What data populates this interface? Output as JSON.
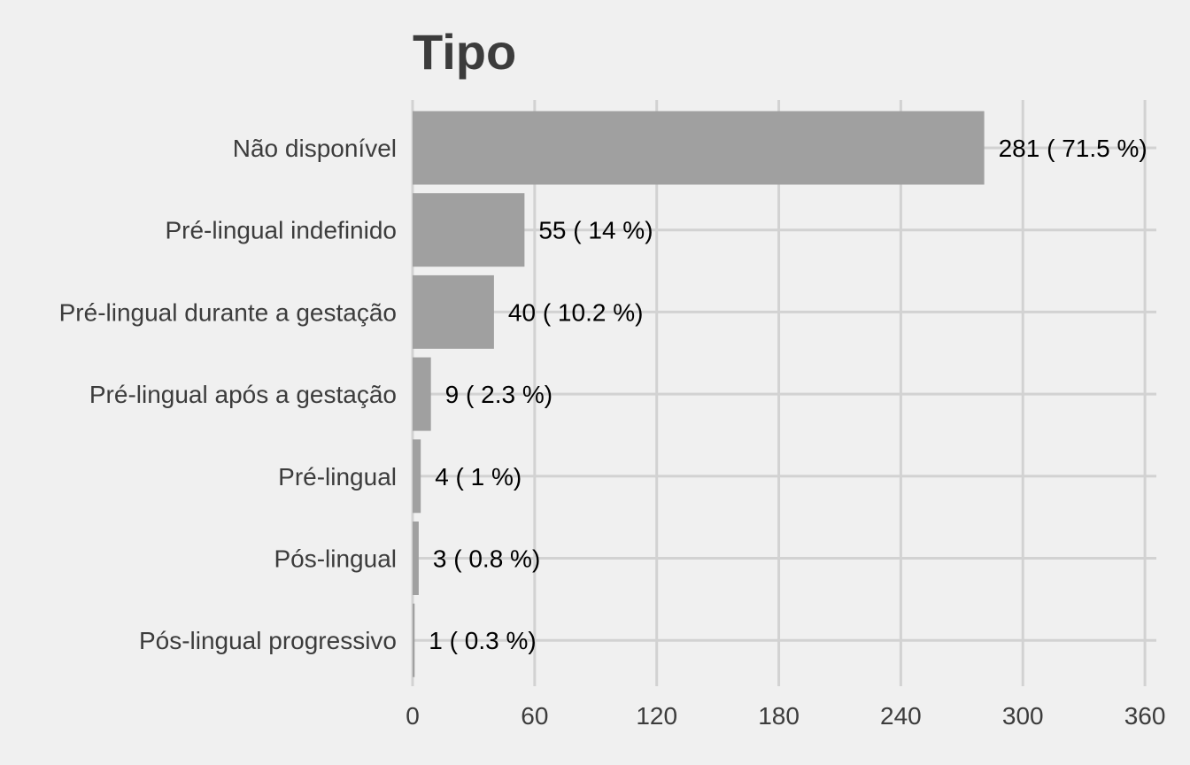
{
  "chart_data": {
    "type": "bar",
    "orientation": "horizontal",
    "title": "Tipo",
    "xlabel": "",
    "ylabel": "",
    "categories": [
      "Não disponível",
      "Pré-lingual indefinido",
      "Pré-lingual durante a gestação",
      "Pré-lingual após a gestação",
      "Pré-lingual",
      "Pós-lingual",
      "Pós-lingual progressivo"
    ],
    "values": [
      281,
      55,
      40,
      9,
      4,
      3,
      1
    ],
    "data_labels": [
      "281 ( 71.5 %)",
      "55 ( 14 %)",
      "40 ( 10.2 %)",
      "9 ( 2.3 %)",
      "4 ( 1 %)",
      "3 ( 0.8 %)",
      "1 ( 0.3 %)"
    ],
    "xlim": [
      0,
      365
    ],
    "xticks": [
      0,
      60,
      120,
      180,
      240,
      300,
      360
    ],
    "xtick_labels": [
      "0",
      "60",
      "120",
      "180",
      "240",
      "300",
      "360"
    ],
    "grid": true,
    "legend": "none",
    "colors": {
      "background": "#f0f0f0",
      "bar": "#a0a0a0",
      "grid": "#d2d2d2",
      "text": "#3c3c3c",
      "data_label": "#000000"
    }
  }
}
